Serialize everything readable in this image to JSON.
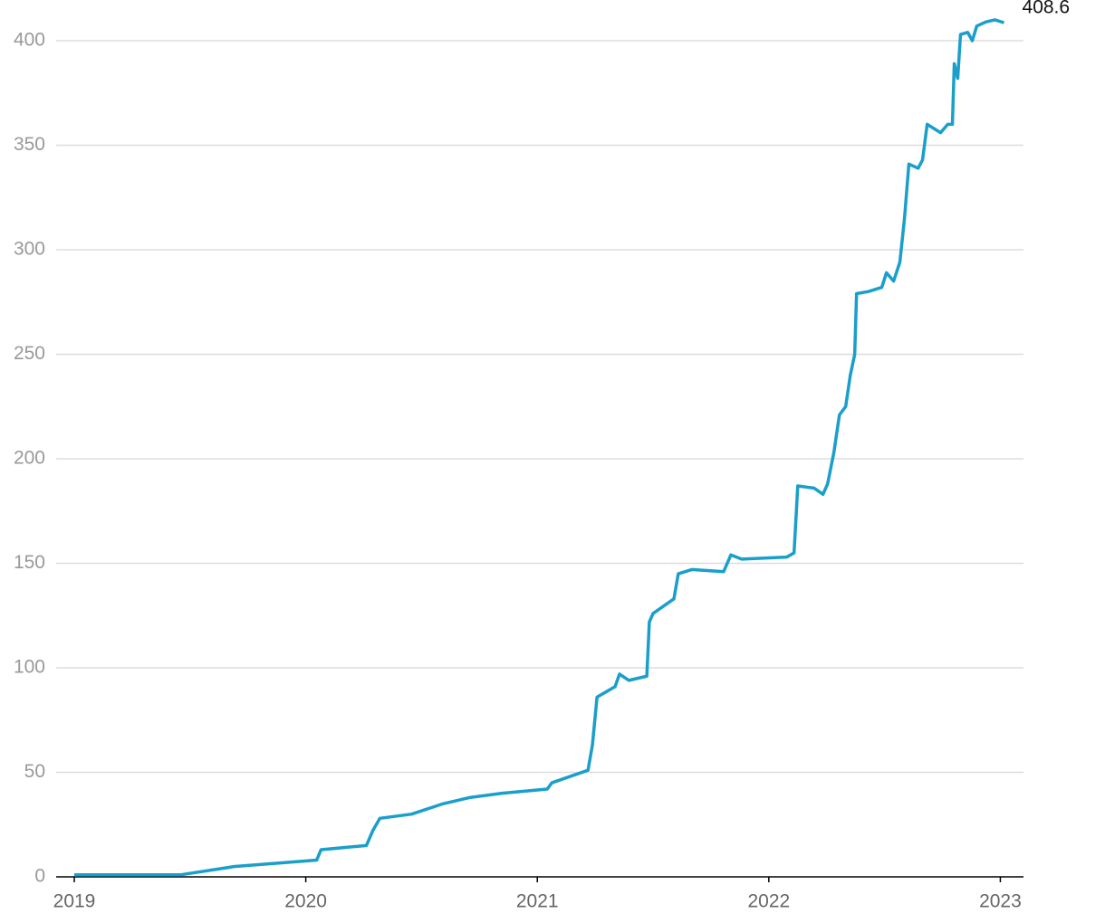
{
  "chart_data": {
    "type": "line",
    "color": "#1a9fcb",
    "x": [
      2019,
      2019.461,
      2019.695,
      2020.047,
      2020.066,
      2020.262,
      2020.289,
      2020.32,
      2020.457,
      2020.594,
      2020.711,
      2020.848,
      2021.043,
      2021.063,
      2021.219,
      2021.238,
      2021.258,
      2021.336,
      2021.355,
      2021.395,
      2021.473,
      2021.484,
      2021.5,
      2021.59,
      2021.609,
      2021.668,
      2021.805,
      2021.836,
      2021.883,
      2022.078,
      2022.109,
      2022.125,
      2022.195,
      2022.234,
      2022.254,
      2022.281,
      2022.305,
      2022.332,
      2022.352,
      2022.371,
      2022.379,
      2022.43,
      2022.488,
      2022.508,
      2022.539,
      2022.566,
      2022.586,
      2022.605,
      2022.645,
      2022.664,
      2022.684,
      2022.742,
      2022.773,
      2022.793,
      2022.801,
      2022.816,
      2022.828,
      2022.859,
      2022.879,
      2022.898,
      2022.938,
      2022.977,
      2023.016
    ],
    "values": [
      1,
      1,
      5,
      8,
      13,
      15,
      22,
      28,
      30,
      35,
      38,
      40,
      42,
      45,
      51,
      63,
      86,
      91,
      97,
      94,
      96,
      122,
      126,
      133,
      145,
      147,
      146,
      154,
      152,
      153,
      155,
      187,
      186,
      183,
      188,
      203,
      221,
      225,
      240,
      250,
      279,
      280,
      282,
      289,
      285,
      294,
      315,
      341,
      339,
      343,
      360,
      356,
      360,
      360,
      389,
      382,
      403,
      404,
      400,
      407,
      409,
      410,
      408.6
    ],
    "xlim": [
      2019,
      2023.1
    ],
    "xticks": [
      2019,
      2020,
      2021,
      2022,
      2023
    ],
    "ylim": [
      0,
      400
    ],
    "yticks": [
      0,
      50,
      100,
      150,
      200,
      250,
      300,
      350,
      400
    ],
    "grid": true
  }
}
